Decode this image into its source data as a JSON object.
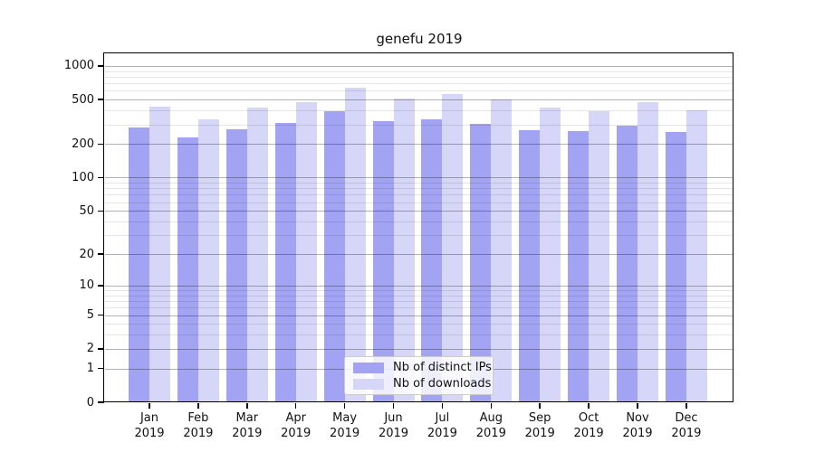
{
  "chart_data": {
    "type": "bar",
    "title": "genefu 2019",
    "year": "2019",
    "categories": [
      "Jan",
      "Feb",
      "Mar",
      "Apr",
      "May",
      "Jun",
      "Jul",
      "Aug",
      "Sep",
      "Oct",
      "Nov",
      "Dec"
    ],
    "series": [
      {
        "name": "Nb of distinct IPs",
        "color": "#a3a3f3",
        "values": [
          282,
          230,
          272,
          311,
          392,
          319,
          335,
          302,
          268,
          261,
          291,
          258
        ]
      },
      {
        "name": "Nb of downloads",
        "color": "#d6d6f8",
        "values": [
          433,
          333,
          422,
          475,
          636,
          512,
          558,
          499,
          422,
          392,
          472,
          399
        ]
      }
    ],
    "yticks": [
      0,
      1,
      2,
      5,
      10,
      20,
      50,
      100,
      200,
      500,
      1000
    ],
    "scale": "log1p",
    "ylim": [
      0,
      1272
    ],
    "xlabel": "",
    "ylabel": "",
    "grid": "on",
    "legend_position": "bottom-center"
  }
}
